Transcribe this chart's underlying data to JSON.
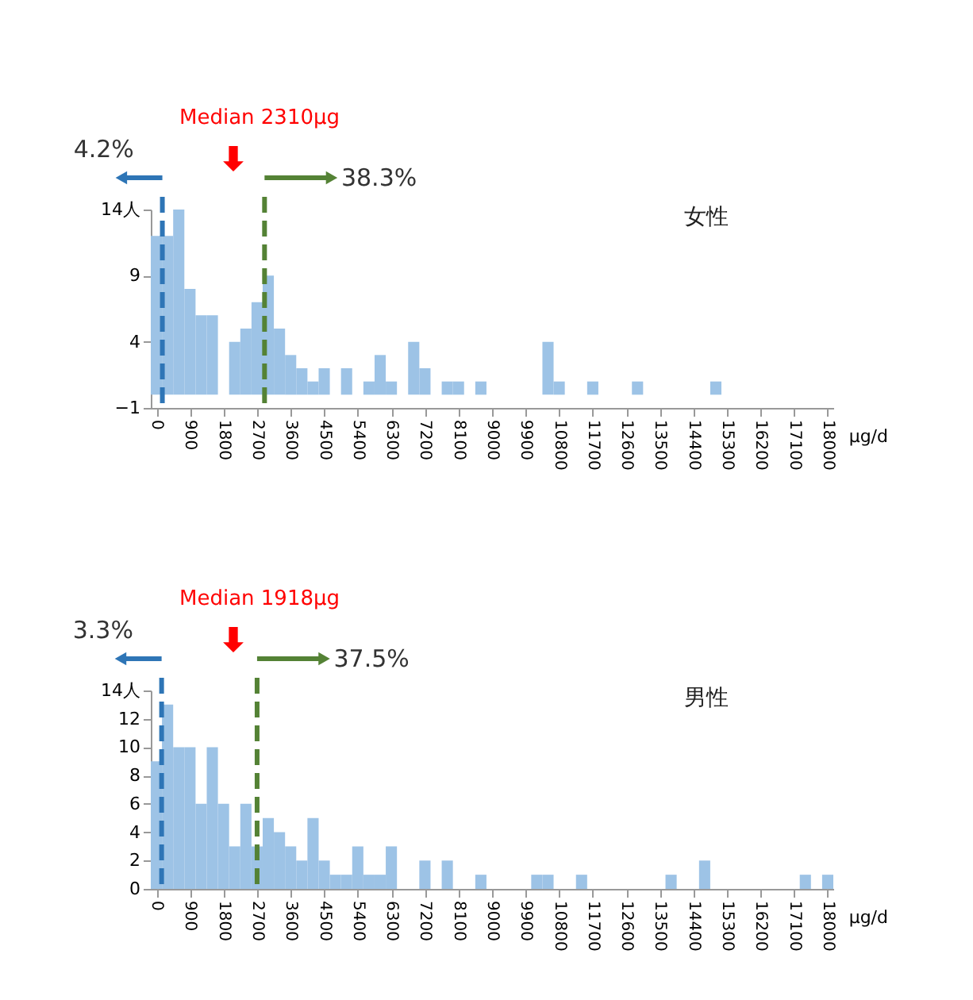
{
  "chart_data": [
    {
      "type": "histogram",
      "title": "女性",
      "xlabel": "µg/d",
      "color": "#9dc3e6",
      "bins": [
        -150,
        150,
        450,
        750,
        1050,
        1350,
        1650,
        1950,
        2250,
        2550,
        2850,
        3150,
        3450,
        3750,
        4050,
        4350,
        4650,
        4950,
        5250,
        5550,
        5850,
        6150,
        6450,
        6750,
        7050,
        7350,
        7650,
        7950,
        8250,
        8550,
        8850,
        9150,
        9450,
        9750,
        10050,
        10350,
        10650,
        10950,
        11250,
        11550,
        11850,
        12150,
        12450,
        12750,
        13050,
        13350,
        13650,
        13950,
        14250,
        14550,
        14850,
        15150,
        15450,
        15750,
        16050,
        16350,
        16650,
        16950,
        17250,
        17550,
        17850,
        18150
      ],
      "values": [
        12,
        12,
        14,
        8,
        6,
        6,
        0,
        4,
        5,
        7,
        9,
        5,
        3,
        2,
        1,
        2,
        0,
        2,
        0,
        1,
        3,
        1,
        0,
        4,
        2,
        0,
        1,
        1,
        0,
        1,
        0,
        0,
        0,
        0,
        0,
        4,
        1,
        0,
        0,
        1,
        0,
        0,
        0,
        1,
        0,
        0,
        0,
        0,
        0,
        0,
        1,
        0,
        0,
        0,
        0,
        0,
        0,
        0,
        0,
        0,
        0
      ],
      "xlim": [
        -150,
        18150
      ],
      "xticks": [
        0,
        900,
        1800,
        2700,
        3600,
        4500,
        5400,
        6300,
        7200,
        8100,
        9000,
        9900,
        10800,
        11700,
        12600,
        13500,
        14400,
        15300,
        16200,
        17100,
        18000
      ],
      "ylim": [
        -1,
        14
      ],
      "yticks": [
        -1,
        4,
        9,
        {
          "value": 14,
          "label": "14人"
        }
      ],
      "ref_lines": [
        {
          "axis": "x",
          "value": 160,
          "color": "#2e75b6",
          "line_style": "dashed"
        },
        {
          "axis": "x",
          "value": 2900,
          "color": "#548235",
          "line_style": "dashed"
        }
      ],
      "annotations": [
        "4.2%",
        "38.3%",
        "Median 2310μg"
      ],
      "grid": false
    },
    {
      "type": "histogram",
      "title": "男性",
      "xlabel": "µg/d",
      "color": "#9dc3e6",
      "bins": [
        -150,
        150,
        450,
        750,
        1050,
        1350,
        1650,
        1950,
        2250,
        2550,
        2850,
        3150,
        3450,
        3750,
        4050,
        4350,
        4650,
        4950,
        5250,
        5550,
        5850,
        6150,
        6450,
        6750,
        7050,
        7350,
        7650,
        7950,
        8250,
        8550,
        8850,
        9150,
        9450,
        9750,
        10050,
        10350,
        10650,
        10950,
        11250,
        11550,
        11850,
        12150,
        12450,
        12750,
        13050,
        13350,
        13650,
        13950,
        14250,
        14550,
        14850,
        15150,
        15450,
        15750,
        16050,
        16350,
        16650,
        16950,
        17250,
        17550,
        17850,
        18150
      ],
      "values": [
        9,
        13,
        10,
        10,
        6,
        10,
        6,
        3,
        6,
        3,
        5,
        4,
        3,
        2,
        5,
        2,
        1,
        1,
        3,
        1,
        1,
        3,
        0,
        0,
        2,
        0,
        2,
        0,
        0,
        1,
        0,
        0,
        0,
        0,
        1,
        1,
        0,
        0,
        1,
        0,
        0,
        0,
        0,
        0,
        0,
        0,
        1,
        0,
        0,
        2,
        0,
        0,
        0,
        0,
        0,
        0,
        0,
        0,
        1,
        0,
        1
      ],
      "xlim": [
        -150,
        18150
      ],
      "xticks": [
        0,
        900,
        1800,
        2700,
        3600,
        4500,
        5400,
        6300,
        7200,
        8100,
        9000,
        9900,
        10800,
        11700,
        12600,
        13500,
        14400,
        15300,
        16200,
        17100,
        18000
      ],
      "ylim": [
        0,
        14
      ],
      "yticks": [
        0,
        2,
        4,
        6,
        8,
        10,
        12,
        {
          "value": 14,
          "label": "14人"
        }
      ],
      "ref_lines": [
        {
          "axis": "x",
          "value": 140,
          "color": "#2e75b6",
          "line_style": "dashed"
        },
        {
          "axis": "x",
          "value": 2700,
          "color": "#548235",
          "line_style": "dashed"
        }
      ],
      "annotations": [
        "3.3%",
        "37.5%",
        "Median 1918μg"
      ],
      "grid": false
    }
  ]
}
